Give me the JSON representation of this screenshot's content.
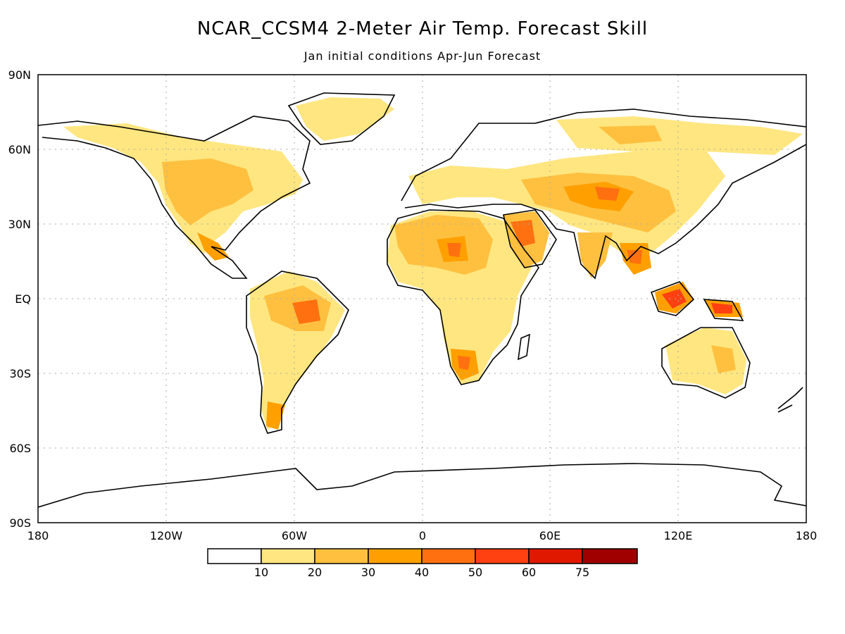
{
  "header": {
    "title": "NCAR_CCSM4 2-Meter Air Temp. Forecast Skill",
    "subtitle": "Jan initial conditions  Apr-Jun Forecast"
  },
  "axes": {
    "lat_labels": [
      "90N",
      "60N",
      "30N",
      "EQ",
      "30S",
      "60S",
      "90S"
    ],
    "lon_labels": [
      "180",
      "120W",
      "60W",
      "0",
      "60E",
      "120E",
      "180"
    ]
  },
  "colorbar": {
    "labels": [
      "10",
      "20",
      "30",
      "40",
      "50",
      "60",
      "75"
    ],
    "colors": [
      "#ffffff",
      "#ffe680",
      "#ffc040",
      "#ffa000",
      "#ff7010",
      "#ff4010",
      "#e01800",
      "#a00000"
    ]
  },
  "palette": {
    "land_outline": "#000000",
    "grid": "#aaaaaa"
  }
}
